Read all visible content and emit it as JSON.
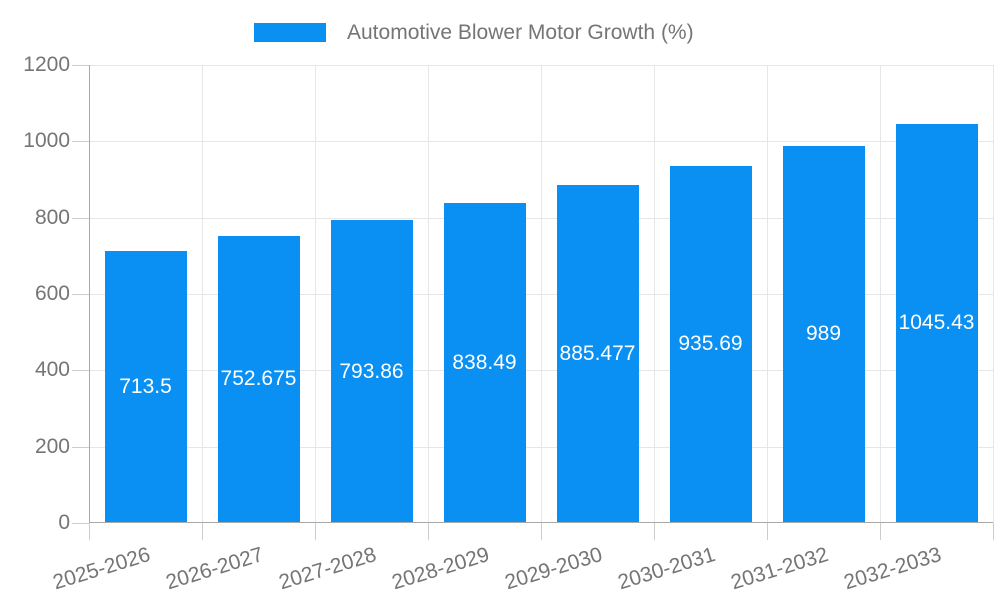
{
  "legend": {
    "label": "Automotive Blower Motor Growth (%)"
  },
  "colors": {
    "bar": "#0a8ff2",
    "axis_text": "#757575",
    "gridline": "#e6e6e6",
    "axis_line": "#a8a8a8",
    "value_label_text": "#ffffff"
  },
  "chart_data": {
    "type": "bar",
    "title": "Automotive Blower Motor Growth (%)",
    "legend_entries": [
      "Automotive Blower Motor Growth (%)"
    ],
    "legend_position": "top",
    "grid": true,
    "categories": [
      "2025-2026",
      "2026-2027",
      "2027-2028",
      "2028-2029",
      "2029-2030",
      "2030-2031",
      "2031-2032",
      "2032-2033"
    ],
    "values": [
      713.5,
      752.675,
      793.86,
      838.49,
      885.477,
      935.69,
      989,
      1045.43
    ],
    "value_labels": [
      "713.5",
      "752.675",
      "793.86",
      "838.49",
      "885.477",
      "935.69",
      "989",
      "1045.43"
    ],
    "xlabel": "",
    "ylabel": "",
    "ylim": [
      0,
      1200
    ],
    "yticks": [
      0,
      200,
      400,
      600,
      800,
      1000,
      1200
    ],
    "bar_color": "#0a8ff2"
  }
}
